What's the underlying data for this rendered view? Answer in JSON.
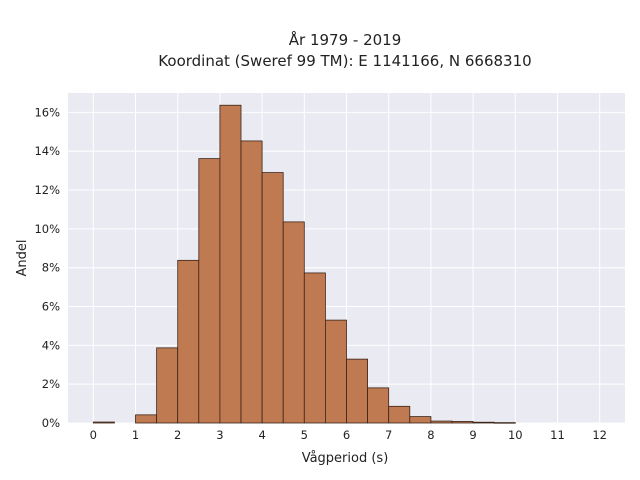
{
  "chart_data": {
    "type": "bar",
    "title": "År 1979 - 2019",
    "subtitle": "Koordinat (Sweref 99 TM): E 1141166, N 6668310",
    "xlabel": "Vågperiod (s)",
    "ylabel": "Andel",
    "bin_width": 0.5,
    "xlim": [
      -0.6,
      12.6
    ],
    "ylim": [
      0,
      0.17
    ],
    "x_ticks": [
      0,
      1,
      2,
      3,
      4,
      5,
      6,
      7,
      8,
      9,
      10,
      11,
      12
    ],
    "x_tick_labels": [
      "0",
      "1",
      "2",
      "3",
      "4",
      "5",
      "6",
      "7",
      "8",
      "9",
      "10",
      "11",
      "12"
    ],
    "y_ticks": [
      0,
      0.02,
      0.04,
      0.06,
      0.08,
      0.1,
      0.12,
      0.14,
      0.16
    ],
    "y_tick_labels": [
      "0%",
      "2%",
      "4%",
      "6%",
      "8%",
      "10%",
      "12%",
      "14%",
      "16%"
    ],
    "grid": true,
    "bar_color": "#c07a52",
    "edge_color": "#3a2418",
    "plot_background": "#eaeaf2",
    "bins": [
      {
        "x": 0.0,
        "value": 0.0005
      },
      {
        "x": 0.5,
        "value": 0.0
      },
      {
        "x": 1.0,
        "value": 0.0042
      },
      {
        "x": 1.5,
        "value": 0.0387
      },
      {
        "x": 2.0,
        "value": 0.0838
      },
      {
        "x": 2.5,
        "value": 0.1362
      },
      {
        "x": 3.0,
        "value": 0.1637
      },
      {
        "x": 3.5,
        "value": 0.1453
      },
      {
        "x": 4.0,
        "value": 0.129
      },
      {
        "x": 4.5,
        "value": 0.1036
      },
      {
        "x": 5.0,
        "value": 0.0773
      },
      {
        "x": 5.5,
        "value": 0.053
      },
      {
        "x": 6.0,
        "value": 0.0329
      },
      {
        "x": 6.5,
        "value": 0.0181
      },
      {
        "x": 7.0,
        "value": 0.0086
      },
      {
        "x": 7.5,
        "value": 0.0033
      },
      {
        "x": 8.0,
        "value": 0.001
      },
      {
        "x": 8.5,
        "value": 0.0008
      },
      {
        "x": 9.0,
        "value": 0.0004
      },
      {
        "x": 9.5,
        "value": 0.0002
      }
    ]
  }
}
